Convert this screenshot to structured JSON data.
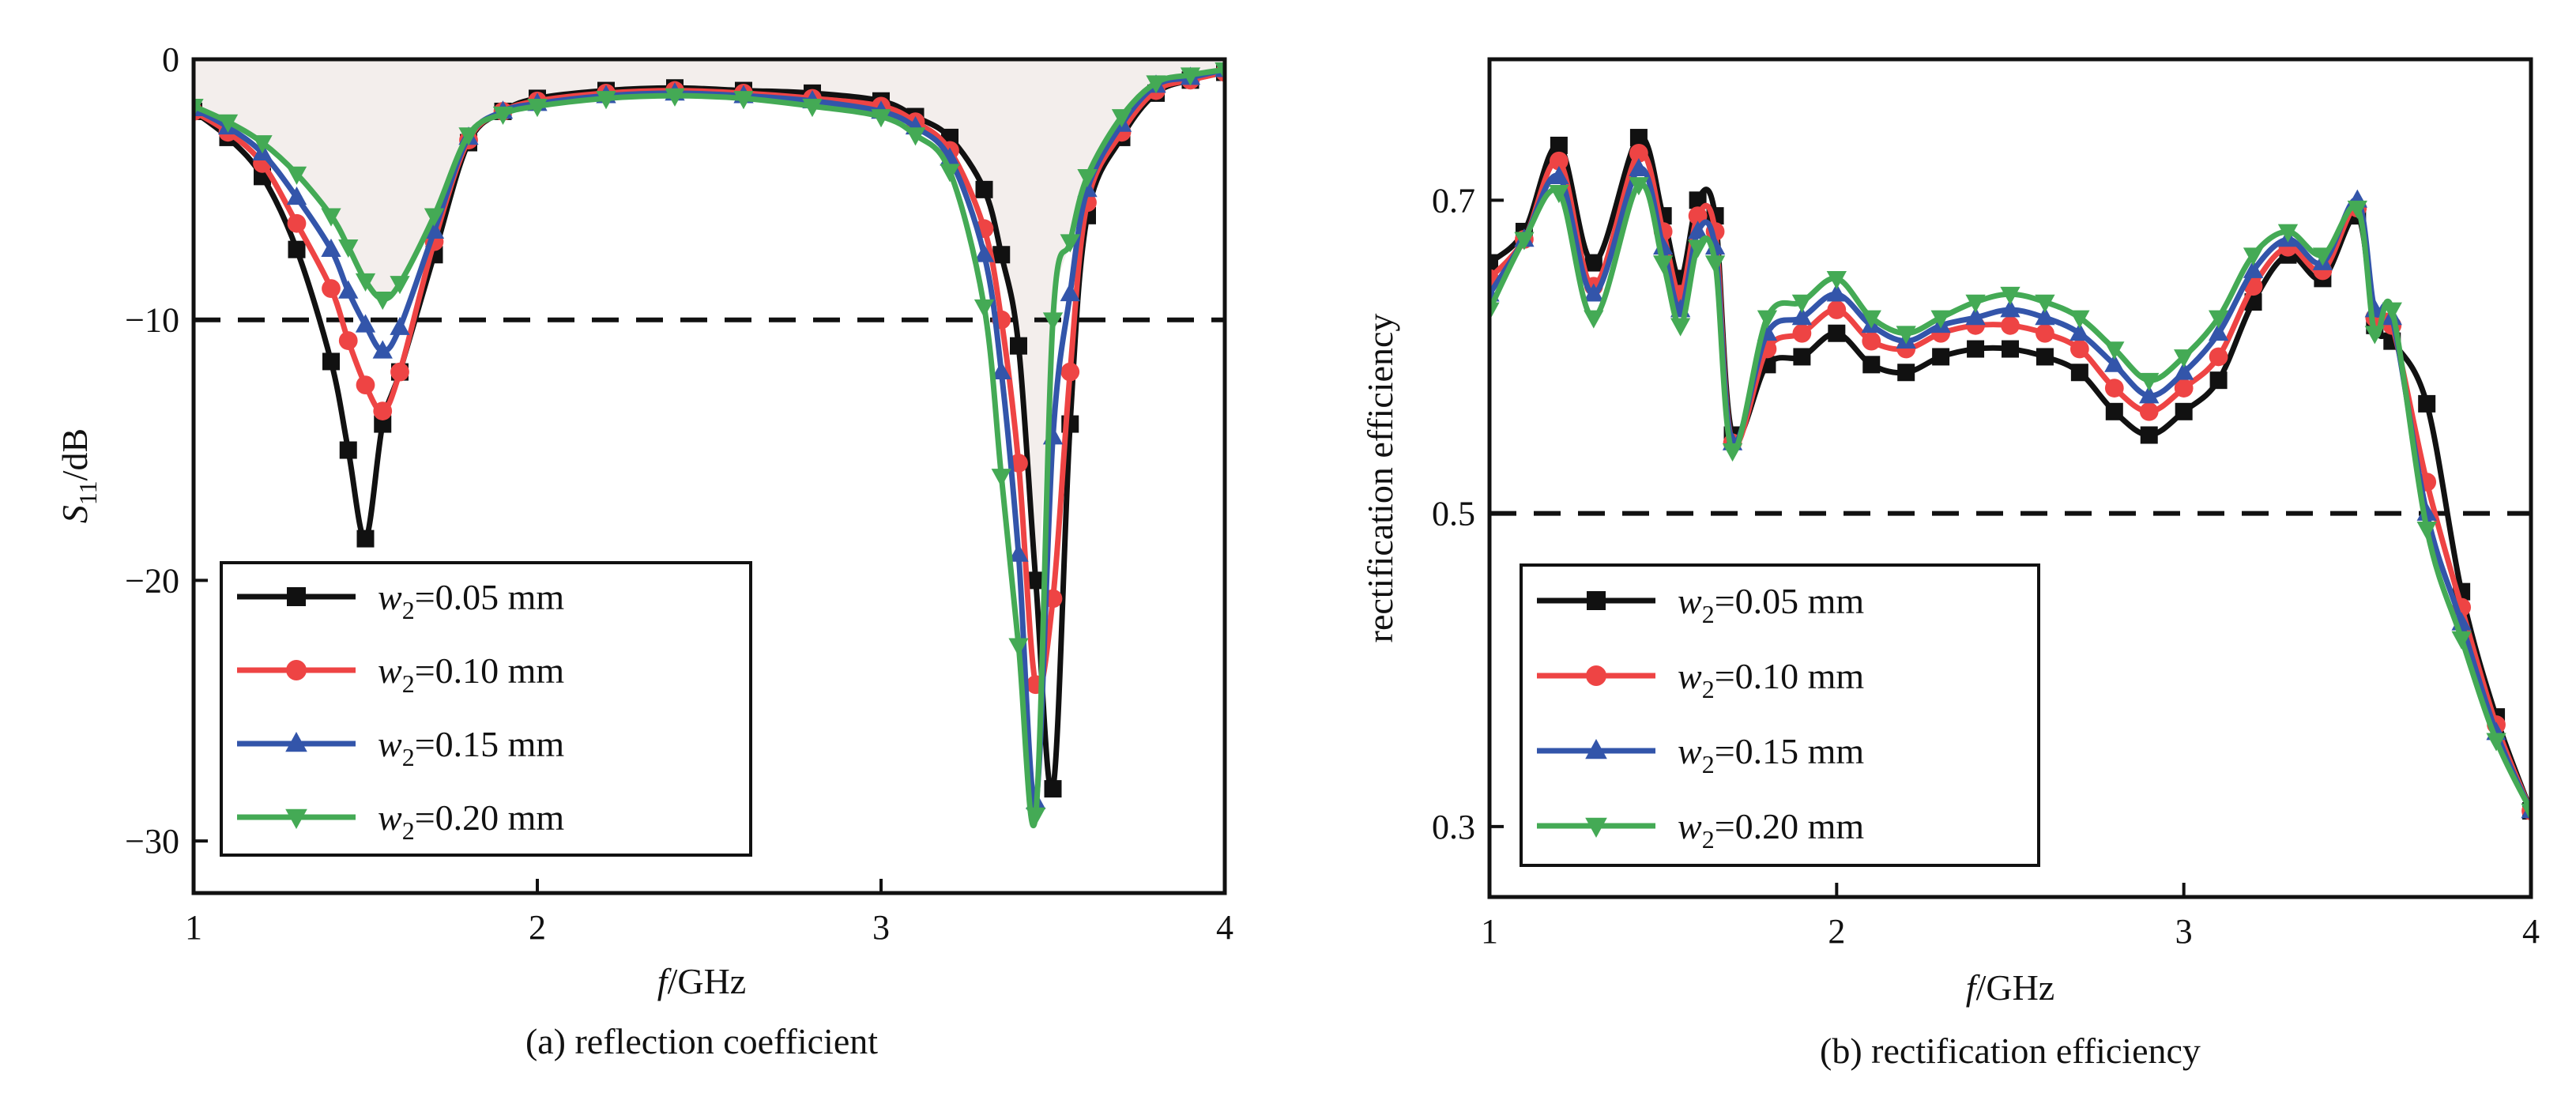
{
  "chart_data": [
    {
      "type": "line",
      "caption": "(a) reflection coefficient",
      "xlabel_italic": "f",
      "xlabel_rest": "/GHz",
      "ylabel_main": "S",
      "ylabel_sub": "11",
      "ylabel_rest": "/dB",
      "xlim": [
        1,
        4
      ],
      "ylim": [
        -32,
        0
      ],
      "xticks": [
        "1",
        "2",
        "3",
        "4"
      ],
      "yticks": [
        "0",
        "−10",
        "−20",
        "−30"
      ],
      "reference_line": -10,
      "shaded_region": "above curves",
      "legend_position": "bottom-left",
      "series": [
        {
          "name_italic": "w",
          "name_sub": "2",
          "name_rest": "=0.05 mm",
          "color": "#111111",
          "marker": "square",
          "x": [
            1.0,
            1.1,
            1.2,
            1.3,
            1.4,
            1.45,
            1.5,
            1.55,
            1.6,
            1.7,
            1.8,
            1.9,
            2.0,
            2.2,
            2.4,
            2.6,
            2.8,
            3.0,
            3.1,
            3.2,
            3.3,
            3.35,
            3.4,
            3.45,
            3.5,
            3.55,
            3.6,
            3.7,
            3.8,
            3.9,
            4.0
          ],
          "y": [
            -2.0,
            -3.0,
            -4.5,
            -7.3,
            -11.6,
            -15.0,
            -18.4,
            -14.0,
            -12.0,
            -7.5,
            -3.2,
            -2.0,
            -1.5,
            -1.2,
            -1.1,
            -1.2,
            -1.3,
            -1.6,
            -2.2,
            -3.0,
            -5.0,
            -7.5,
            -11.0,
            -20.0,
            -28.0,
            -14.0,
            -6.0,
            -3.0,
            -1.3,
            -0.8,
            -0.5
          ]
        },
        {
          "name_italic": "w",
          "name_sub": "2",
          "name_rest": "=0.10 mm",
          "color": "#ee4444",
          "marker": "circle",
          "x": [
            1.0,
            1.1,
            1.2,
            1.3,
            1.4,
            1.45,
            1.5,
            1.55,
            1.6,
            1.7,
            1.8,
            1.9,
            2.0,
            2.2,
            2.4,
            2.6,
            2.8,
            3.0,
            3.1,
            3.2,
            3.3,
            3.35,
            3.4,
            3.45,
            3.5,
            3.55,
            3.6,
            3.7,
            3.8,
            3.9,
            4.0
          ],
          "y": [
            -2.0,
            -2.8,
            -4.0,
            -6.3,
            -8.8,
            -10.8,
            -12.5,
            -13.5,
            -12.0,
            -7.0,
            -3.1,
            -2.0,
            -1.6,
            -1.3,
            -1.2,
            -1.3,
            -1.5,
            -1.8,
            -2.4,
            -3.5,
            -6.5,
            -10.0,
            -15.5,
            -24.0,
            -20.7,
            -12.0,
            -5.5,
            -2.8,
            -1.2,
            -0.8,
            -0.5
          ]
        },
        {
          "name_italic": "w",
          "name_sub": "2",
          "name_rest": "=0.15 mm",
          "color": "#3355aa",
          "marker": "triangle-up",
          "x": [
            1.0,
            1.1,
            1.2,
            1.3,
            1.4,
            1.45,
            1.5,
            1.55,
            1.6,
            1.7,
            1.8,
            1.9,
            2.0,
            2.2,
            2.4,
            2.6,
            2.8,
            3.0,
            3.1,
            3.2,
            3.3,
            3.35,
            3.4,
            3.45,
            3.5,
            3.55,
            3.6,
            3.7,
            3.8,
            3.9,
            4.0
          ],
          "y": [
            -1.9,
            -2.6,
            -3.6,
            -5.3,
            -7.3,
            -8.9,
            -10.2,
            -11.2,
            -10.3,
            -6.6,
            -3.0,
            -2.0,
            -1.7,
            -1.4,
            -1.3,
            -1.4,
            -1.6,
            -2.0,
            -2.6,
            -3.8,
            -7.5,
            -12.0,
            -19.0,
            -28.5,
            -14.5,
            -9.0,
            -5.0,
            -2.5,
            -1.0,
            -0.7,
            -0.4
          ]
        },
        {
          "name_italic": "w",
          "name_sub": "2",
          "name_rest": "=0.20 mm",
          "color": "#44aa55",
          "marker": "triangle-down",
          "x": [
            1.0,
            1.1,
            1.2,
            1.3,
            1.4,
            1.45,
            1.5,
            1.55,
            1.6,
            1.7,
            1.8,
            1.9,
            2.0,
            2.2,
            2.4,
            2.6,
            2.8,
            3.0,
            3.1,
            3.2,
            3.3,
            3.35,
            3.4,
            3.45,
            3.5,
            3.55,
            3.6,
            3.7,
            3.8,
            3.9,
            4.0
          ],
          "y": [
            -1.8,
            -2.4,
            -3.2,
            -4.4,
            -6.0,
            -7.2,
            -8.5,
            -9.2,
            -8.6,
            -6.0,
            -2.9,
            -2.1,
            -1.8,
            -1.5,
            -1.4,
            -1.5,
            -1.8,
            -2.2,
            -2.9,
            -4.3,
            -9.5,
            -16.0,
            -22.5,
            -29.0,
            -10.0,
            -7.0,
            -4.5,
            -2.2,
            -0.9,
            -0.6,
            -0.4
          ]
        }
      ]
    },
    {
      "type": "line",
      "caption": "(b) rectification efficiency",
      "xlabel_italic": "f",
      "xlabel_rest": "/GHz",
      "ylabel": "rectification efficiency",
      "xlim": [
        1,
        4
      ],
      "ylim": [
        0.255,
        0.79
      ],
      "xticks": [
        "1",
        "2",
        "3",
        "4"
      ],
      "yticks": [
        "0.3",
        "0.5",
        "0.7"
      ],
      "ytick_values": [
        0.3,
        0.5,
        0.7
      ],
      "reference_line": 0.5,
      "legend_position": "bottom-left",
      "series": [
        {
          "name_italic": "w",
          "name_sub": "2",
          "name_rest": "=0.05 mm",
          "color": "#111111",
          "marker": "square",
          "x": [
            1.0,
            1.1,
            1.2,
            1.3,
            1.43,
            1.5,
            1.55,
            1.6,
            1.65,
            1.7,
            1.8,
            1.9,
            2.0,
            2.1,
            2.2,
            2.3,
            2.4,
            2.5,
            2.6,
            2.7,
            2.8,
            2.9,
            3.0,
            3.1,
            3.2,
            3.3,
            3.4,
            3.5,
            3.55,
            3.6,
            3.7,
            3.8,
            3.9,
            4.0
          ],
          "y": [
            0.66,
            0.68,
            0.735,
            0.66,
            0.74,
            0.69,
            0.65,
            0.7,
            0.69,
            0.55,
            0.595,
            0.6,
            0.615,
            0.595,
            0.59,
            0.6,
            0.605,
            0.605,
            0.6,
            0.59,
            0.565,
            0.55,
            0.565,
            0.585,
            0.635,
            0.665,
            0.65,
            0.69,
            0.62,
            0.61,
            0.57,
            0.45,
            0.37,
            0.31
          ]
        },
        {
          "name_italic": "w",
          "name_sub": "2",
          "name_rest": "=0.10 mm",
          "color": "#ee4444",
          "marker": "circle",
          "x": [
            1.0,
            1.1,
            1.2,
            1.3,
            1.43,
            1.5,
            1.55,
            1.6,
            1.65,
            1.7,
            1.8,
            1.9,
            2.0,
            2.1,
            2.2,
            2.3,
            2.4,
            2.5,
            2.6,
            2.7,
            2.8,
            2.9,
            3.0,
            3.1,
            3.2,
            3.3,
            3.4,
            3.5,
            3.55,
            3.6,
            3.7,
            3.8,
            3.9,
            4.0
          ],
          "y": [
            0.65,
            0.675,
            0.725,
            0.645,
            0.73,
            0.68,
            0.64,
            0.69,
            0.68,
            0.545,
            0.605,
            0.615,
            0.63,
            0.61,
            0.605,
            0.615,
            0.62,
            0.62,
            0.615,
            0.605,
            0.58,
            0.565,
            0.58,
            0.6,
            0.645,
            0.67,
            0.655,
            0.695,
            0.625,
            0.62,
            0.52,
            0.44,
            0.365,
            0.31
          ]
        },
        {
          "name_italic": "w",
          "name_sub": "2",
          "name_rest": "=0.15 mm",
          "color": "#3355aa",
          "marker": "triangle-up",
          "x": [
            1.0,
            1.1,
            1.2,
            1.3,
            1.43,
            1.5,
            1.55,
            1.6,
            1.65,
            1.7,
            1.8,
            1.9,
            2.0,
            2.1,
            2.2,
            2.3,
            2.4,
            2.5,
            2.6,
            2.7,
            2.8,
            2.9,
            3.0,
            3.1,
            3.2,
            3.3,
            3.4,
            3.5,
            3.55,
            3.6,
            3.7,
            3.8,
            3.9,
            4.0
          ],
          "y": [
            0.64,
            0.675,
            0.715,
            0.64,
            0.72,
            0.67,
            0.63,
            0.68,
            0.67,
            0.545,
            0.615,
            0.625,
            0.64,
            0.62,
            0.61,
            0.62,
            0.625,
            0.63,
            0.625,
            0.615,
            0.595,
            0.575,
            0.59,
            0.615,
            0.655,
            0.675,
            0.66,
            0.7,
            0.63,
            0.625,
            0.5,
            0.43,
            0.36,
            0.31
          ]
        },
        {
          "name_italic": "w",
          "name_sub": "2",
          "name_rest": "=0.20 mm",
          "color": "#44aa55",
          "marker": "triangle-down",
          "x": [
            1.0,
            1.1,
            1.2,
            1.3,
            1.43,
            1.5,
            1.55,
            1.6,
            1.65,
            1.7,
            1.8,
            1.9,
            2.0,
            2.1,
            2.2,
            2.3,
            2.4,
            2.5,
            2.6,
            2.7,
            2.8,
            2.9,
            3.0,
            3.1,
            3.2,
            3.3,
            3.4,
            3.5,
            3.55,
            3.6,
            3.7,
            3.8,
            3.9,
            4.0
          ],
          "y": [
            0.63,
            0.675,
            0.705,
            0.625,
            0.71,
            0.66,
            0.62,
            0.67,
            0.66,
            0.54,
            0.625,
            0.635,
            0.65,
            0.625,
            0.615,
            0.625,
            0.635,
            0.64,
            0.635,
            0.625,
            0.605,
            0.585,
            0.6,
            0.625,
            0.665,
            0.68,
            0.665,
            0.695,
            0.615,
            0.63,
            0.49,
            0.42,
            0.355,
            0.31
          ]
        }
      ]
    }
  ]
}
